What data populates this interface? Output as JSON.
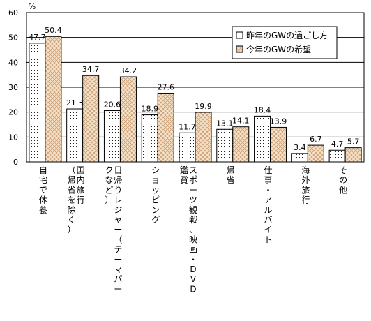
{
  "chart_data": {
    "type": "bar",
    "unit_label": "%",
    "ylim": [
      0,
      60
    ],
    "yticks": [
      0,
      10,
      20,
      30,
      40,
      50,
      60
    ],
    "grid": true,
    "legend_position": "top-right",
    "categories": [
      "自宅で休養",
      "国内旅行（帰省を除く）",
      "日帰りレジャー（テーマパークなど）",
      "ショッピング",
      "スポーツ観戦、映画・DVD鑑賞",
      "帰省",
      "仕事・アルバイト",
      "海外旅行",
      "その他"
    ],
    "category_label_columns": [
      [
        "自宅で休養"
      ],
      [
        "国内旅行",
        "（帰省を除く）"
      ],
      [
        "日帰りレジャー（テーマパー",
        "クなど）"
      ],
      [
        "ショッピング"
      ],
      [
        "スポーツ観戦、映画・DVD",
        "鑑賞"
      ],
      [
        "帰省"
      ],
      [
        "仕事・アルバイト"
      ],
      [
        "海外旅行"
      ],
      [
        "その他"
      ]
    ],
    "series": [
      {
        "name": "昨年のGWの過ごし方",
        "pattern": "dots",
        "values": [
          47.7,
          21.3,
          20.6,
          18.9,
          11.7,
          13.1,
          18.4,
          3.4,
          4.7
        ]
      },
      {
        "name": "今年のGWの希望",
        "pattern": "crosshatch",
        "values": [
          50.4,
          34.7,
          34.2,
          27.6,
          19.9,
          14.1,
          13.9,
          6.7,
          5.7
        ]
      }
    ],
    "colors": {
      "series1": "#ffffff",
      "series2": "#f7e2c8",
      "hatch": "#c8a078",
      "dot": "#222222"
    }
  }
}
